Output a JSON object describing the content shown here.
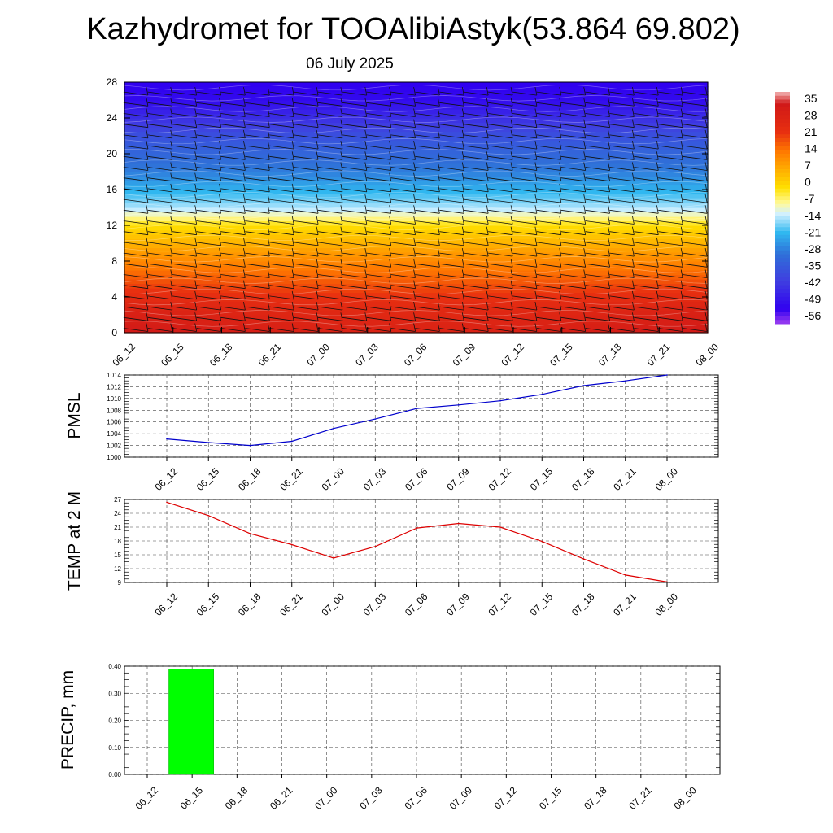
{
  "title": "Kazhydromet for TOOAlibiAstyk(53.864 69.802)",
  "subtitle": "06 July 2025",
  "chart_data": [
    {
      "type": "heatmap",
      "panel": "cross-section",
      "x": [
        "06_12",
        "06_15",
        "06_18",
        "06_21",
        "07_00",
        "07_03",
        "07_06",
        "07_09",
        "07_12",
        "07_15",
        "07_18",
        "07_21",
        "08_00"
      ],
      "ylim": [
        0,
        28
      ],
      "yticks": [
        0,
        4,
        8,
        12,
        16,
        20,
        24,
        28
      ],
      "colorbar": {
        "labels": [
          "35",
          "28",
          "21",
          "14",
          "7",
          "0",
          "-7",
          "-14",
          "-21",
          "-28",
          "-35",
          "-42",
          "-49",
          "-56"
        ],
        "stops": [
          {
            "value": 35,
            "color": "#f2b8b8"
          },
          {
            "value": 30,
            "color": "#d01818"
          },
          {
            "value": 18,
            "color": "#e83010"
          },
          {
            "value": 10,
            "color": "#ff7a00"
          },
          {
            "value": 2,
            "color": "#ffb000"
          },
          {
            "value": -5,
            "color": "#ffe000"
          },
          {
            "value": -12,
            "color": "#fffaa0"
          },
          {
            "value": -16,
            "color": "#d0f0ff"
          },
          {
            "value": -24,
            "color": "#30b8f0"
          },
          {
            "value": -33,
            "color": "#2f6fd8"
          },
          {
            "value": -44,
            "color": "#3f3fe0"
          },
          {
            "value": -56,
            "color": "#3000f0"
          },
          {
            "value": -62,
            "color": "#a040f0"
          }
        ]
      }
    },
    {
      "type": "line",
      "panel": "pmsl",
      "ylabel": "PMSL",
      "x": [
        "06_12",
        "06_15",
        "06_18",
        "06_21",
        "07_00",
        "07_03",
        "07_06",
        "07_09",
        "07_12",
        "07_15",
        "07_18",
        "07_21",
        "08_00"
      ],
      "values": [
        1003.1,
        1002.5,
        1002.0,
        1002.7,
        1004.9,
        1006.5,
        1008.3,
        1008.9,
        1009.6,
        1010.7,
        1012.2,
        1013.0,
        1014.0
      ],
      "ylim": [
        1000,
        1014
      ],
      "yticks": [
        1000,
        1002,
        1004,
        1006,
        1008,
        1010,
        1012,
        1014
      ],
      "color": "#0000cc"
    },
    {
      "type": "line",
      "panel": "temp",
      "ylabel": "TEMP at 2 M",
      "x": [
        "06_12",
        "06_15",
        "06_18",
        "06_21",
        "07_00",
        "07_03",
        "07_06",
        "07_09",
        "07_12",
        "07_15",
        "07_18",
        "07_21",
        "08_00"
      ],
      "values": [
        26.4,
        23.5,
        19.6,
        17.2,
        14.3,
        16.8,
        20.8,
        21.8,
        21.0,
        17.9,
        14.1,
        10.6,
        9.1
      ],
      "ylim": [
        9,
        27
      ],
      "yticks": [
        9,
        12,
        15,
        18,
        21,
        24,
        27
      ],
      "color": "#dd0000"
    },
    {
      "type": "bar",
      "panel": "precip",
      "ylabel": "PRECIP, mm",
      "x": [
        "06_12",
        "06_15",
        "06_18",
        "06_21",
        "07_00",
        "07_03",
        "07_06",
        "07_09",
        "07_12",
        "07_15",
        "07_18",
        "07_21",
        "08_00"
      ],
      "values": [
        0,
        0.39,
        0,
        0,
        0,
        0,
        0,
        0,
        0,
        0,
        0,
        0,
        0
      ],
      "ylim": [
        0,
        0.4
      ],
      "yticks": [
        "0.00",
        "0.10",
        "0.20",
        "0.30",
        "0.40"
      ],
      "color": "#00ff00"
    }
  ]
}
